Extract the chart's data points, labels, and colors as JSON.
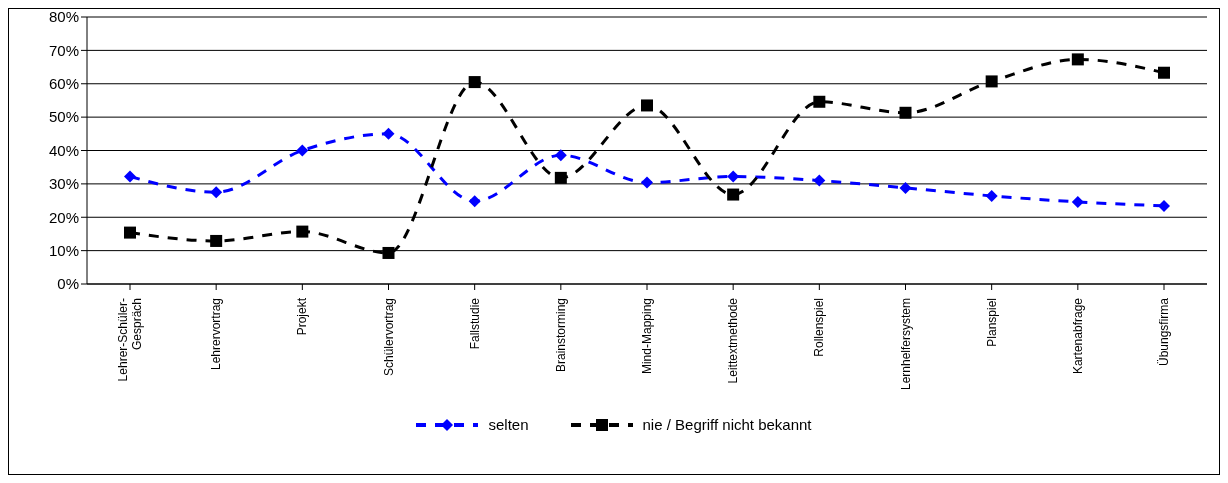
{
  "chart_data": {
    "type": "line",
    "categories": [
      "Lehrer-Schüler-Gespräch",
      "Lehrervortrag",
      "Projekt",
      "Schülervortrag",
      "Fallstudie",
      "Brainstorming",
      "Mind-Mapping",
      "Leittextmethode",
      "Rollenspiel",
      "Lernhelfersystem",
      "Planspiel",
      "Kartenabfrage",
      "Übungsfirma"
    ],
    "series": [
      {
        "name": "selten",
        "color": "#0000ff",
        "marker": "diamond",
        "values": [
          32.2,
          27.5,
          40,
          45,
          24.8,
          38.6,
          30.4,
          32.2,
          31,
          28.8,
          26.4,
          24.6,
          23.4
        ]
      },
      {
        "name": "nie / Begriff nicht bekannt",
        "color": "#000000",
        "marker": "square",
        "values": [
          15.4,
          12.9,
          15.7,
          9.3,
          60.5,
          31.8,
          53.5,
          26.8,
          54.6,
          51.3,
          60.7,
          67.3,
          63.3
        ]
      }
    ],
    "ylim": [
      0,
      80
    ],
    "yticks": [
      {
        "value": 0,
        "label": "0%"
      },
      {
        "value": 10,
        "label": "10%"
      },
      {
        "value": 20,
        "label": "20%"
      },
      {
        "value": 30,
        "label": "30%"
      },
      {
        "value": 40,
        "label": "40%"
      },
      {
        "value": 50,
        "label": "50%"
      },
      {
        "value": 60,
        "label": "60%"
      },
      {
        "value": 70,
        "label": "70%"
      },
      {
        "value": 80,
        "label": "80%"
      }
    ],
    "grid": "y",
    "legend": "bottom",
    "line_style": "dashed"
  }
}
